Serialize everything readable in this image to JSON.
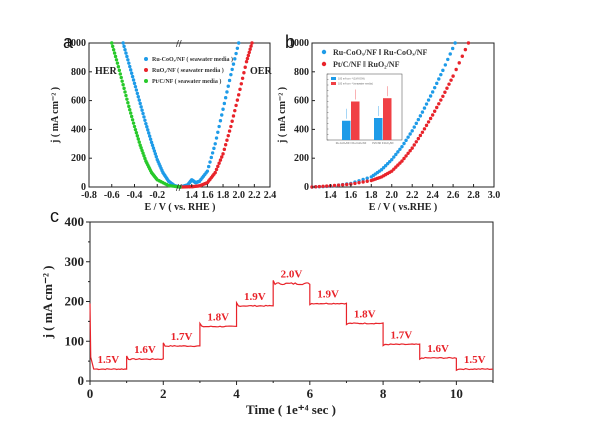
{
  "chart_data": [
    {
      "panel": "a",
      "type": "scatter",
      "xlabel": "E / V ( vs. RHE )",
      "ylabel": "j ( mA cm⁻² )",
      "xlim": [
        -0.8,
        2.4
      ],
      "ylim": [
        0,
        1000
      ],
      "axis_break": true,
      "xticks_left": [
        "-0.8",
        "-0.6",
        "-0.4",
        "-0.2"
      ],
      "xticks_right": [
        "1.4",
        "1.6",
        "1.8",
        "2.0",
        "2.2",
        "2.4"
      ],
      "yticks": [
        "0",
        "200",
        "400",
        "600",
        "800",
        "1000"
      ],
      "annotations": [
        "HER",
        "OER"
      ],
      "legend_position": "top-center",
      "series": [
        {
          "name": "Ru-CoOₓ/NF ( seawater media )",
          "color": "#1e9be8",
          "side": "HER",
          "x": [
            -0.5,
            -0.45,
            -0.4,
            -0.35,
            -0.3,
            -0.25,
            -0.2,
            -0.15,
            -0.1,
            -0.05,
            0.0
          ],
          "y": [
            1000,
            860,
            720,
            580,
            440,
            310,
            190,
            100,
            40,
            10,
            0
          ]
        },
        {
          "name": "Ru-CoOₓ/NF ( seawater media )",
          "color": "#1e9be8",
          "side": "OER",
          "x": [
            1.25,
            1.35,
            1.4,
            1.45,
            1.5,
            1.6,
            1.7,
            1.8,
            1.9,
            2.0
          ],
          "y": [
            0,
            15,
            50,
            30,
            40,
            110,
            300,
            540,
            780,
            1000
          ]
        },
        {
          "name": "RuO₂/NF ( seawater media )",
          "color": "#e8232a",
          "side": "OER",
          "x": [
            1.25,
            1.4,
            1.5,
            1.6,
            1.7,
            1.8,
            1.9,
            2.0,
            2.1,
            2.17
          ],
          "y": [
            0,
            2,
            8,
            30,
            100,
            230,
            420,
            640,
            870,
            1000
          ]
        },
        {
          "name": "Pt/C/NF ( seawater media )",
          "color": "#27c92a",
          "side": "HER",
          "x": [
            -0.6,
            -0.55,
            -0.5,
            -0.45,
            -0.4,
            -0.35,
            -0.3,
            -0.25,
            -0.2,
            -0.1,
            0.0
          ],
          "y": [
            1000,
            860,
            710,
            560,
            420,
            290,
            180,
            100,
            50,
            10,
            0
          ]
        }
      ]
    },
    {
      "panel": "b",
      "type": "scatter",
      "xlabel": "E / V ( vs.RHE )",
      "ylabel": "j ( mA cm⁻² )",
      "xlim": [
        1.22,
        3.0
      ],
      "ylim": [
        0,
        1000
      ],
      "xticks": [
        "1.4",
        "1.6",
        "1.8",
        "2.0",
        "2.2",
        "2.4",
        "2.6",
        "2.8",
        "3.0"
      ],
      "yticks": [
        "0",
        "200",
        "400",
        "600",
        "800",
        "1000"
      ],
      "legend_position": "top-left",
      "series": [
        {
          "name": "Ru-CoOₓ/NF ‖ Ru-CoOₓ/NF",
          "color": "#1e9be8",
          "x": [
            1.22,
            1.4,
            1.6,
            1.8,
            1.9,
            2.0,
            2.1,
            2.2,
            2.3,
            2.4,
            2.5,
            2.62
          ],
          "y": [
            0,
            5,
            25,
            70,
            120,
            190,
            280,
            390,
            520,
            660,
            810,
            1000
          ]
        },
        {
          "name": "Pt/C/NF ‖ RuO₂/NF",
          "color": "#e8232a",
          "x": [
            1.22,
            1.4,
            1.6,
            1.8,
            1.9,
            2.0,
            2.1,
            2.2,
            2.3,
            2.4,
            2.5,
            2.6,
            2.75
          ],
          "y": [
            0,
            8,
            20,
            45,
            70,
            110,
            180,
            270,
            380,
            500,
            630,
            770,
            1000
          ]
        }
      ],
      "inset": {
        "type": "bar",
        "categories": [
          "Ru-CoOₓ/NF ‖ Ru-CoOₓ/NF",
          "Pt/C/NF ‖ RuO₂/NF"
        ],
        "series": [
          {
            "name": "100 mA cm⁻² (1M KOH)",
            "color": "#1e9be8",
            "values": [
              0.35,
              0.4
            ]
          },
          {
            "name": "100 mA cm⁻² (seawater media)",
            "color": "#f04045",
            "values": [
              0.7,
              0.76
            ]
          }
        ],
        "ylim": [
          0,
          1.2
        ]
      }
    },
    {
      "panel": "c",
      "type": "line",
      "xlabel": "Time ( 1e⁺⁴ sec )",
      "ylabel": "j ( mA cm⁻² )",
      "xlim": [
        0,
        11
      ],
      "ylim": [
        0,
        400
      ],
      "xticks": [
        "0",
        "2",
        "4",
        "6",
        "8",
        "10"
      ],
      "yticks": [
        "0",
        "100",
        "200",
        "300",
        "400"
      ],
      "color": "#e8232a",
      "steps": [
        {
          "label": "1.5V",
          "t0": 0,
          "t1": 1,
          "j": 30
        },
        {
          "label": "1.6V",
          "t0": 1,
          "t1": 2,
          "j": 55
        },
        {
          "label": "1.7V",
          "t0": 2,
          "t1": 3,
          "j": 88
        },
        {
          "label": "1.8V",
          "t0": 3,
          "t1": 4,
          "j": 137
        },
        {
          "label": "1.9V",
          "t0": 4,
          "t1": 5,
          "j": 189
        },
        {
          "label": "2.0V",
          "t0": 5,
          "t1": 6,
          "j": 245
        },
        {
          "label": "1.9V",
          "t0": 6,
          "t1": 7,
          "j": 195
        },
        {
          "label": "1.8V",
          "t0": 7,
          "t1": 8,
          "j": 145
        },
        {
          "label": "1.7V",
          "t0": 8,
          "t1": 9,
          "j": 92
        },
        {
          "label": "1.6V",
          "t0": 9,
          "t1": 10,
          "j": 58
        },
        {
          "label": "1.5V",
          "t0": 10,
          "t1": 11,
          "j": 30
        }
      ]
    }
  ],
  "labels": {
    "a": "a",
    "b": "b",
    "c": "c",
    "her": "HER",
    "oer": "OER"
  }
}
